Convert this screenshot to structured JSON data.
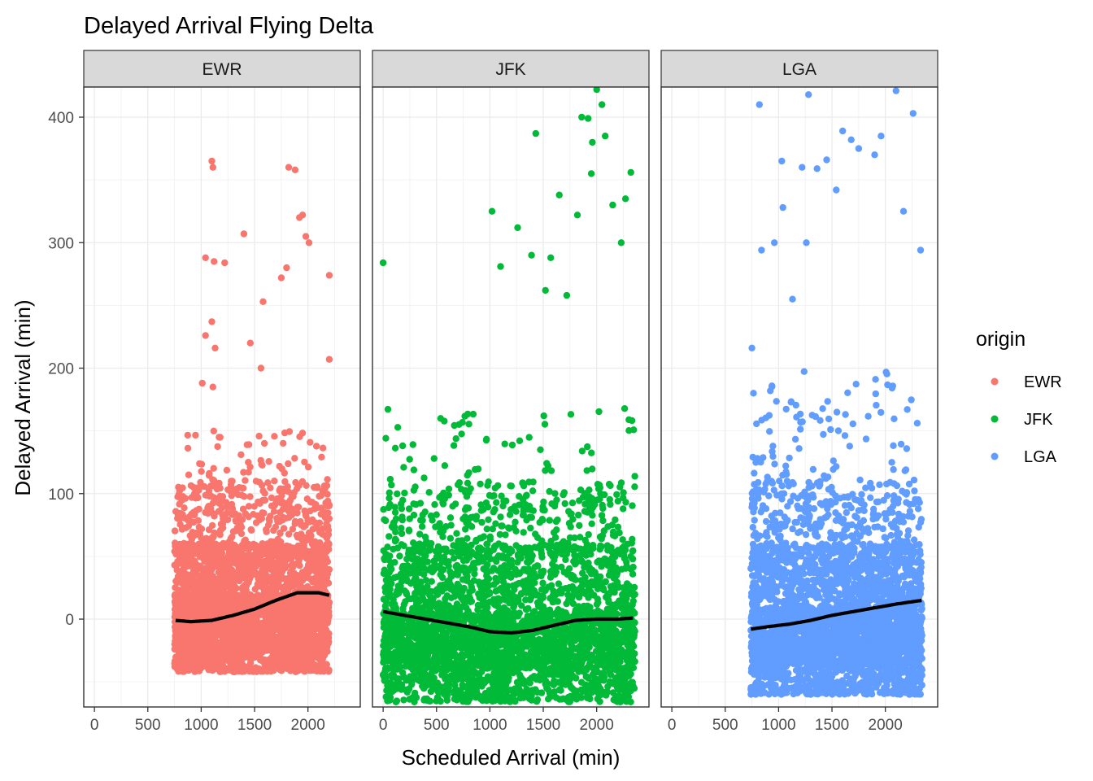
{
  "chart_data": {
    "type": "scatter",
    "title": "Delayed Arrival Flying Delta",
    "xlabel": "Scheduled Arrival (min)",
    "ylabel": "Delayed Arrival (min)",
    "xlim": [
      -100,
      2490
    ],
    "ylim": [
      -70,
      424
    ],
    "x_ticks": [
      0,
      500,
      1000,
      1500,
      2000
    ],
    "y_ticks": [
      0,
      100,
      200,
      300,
      400
    ],
    "grid": true,
    "legend": {
      "title": "origin",
      "placement": "right"
    },
    "facets": [
      {
        "name": "EWR",
        "color": "#F8766D",
        "x_range": [
          750,
          2200
        ],
        "band": {
          "lower": -42,
          "upper": 150
        },
        "smooth": {
          "x": [
            760,
            900,
            1100,
            1300,
            1500,
            1700,
            1900,
            2100,
            2200
          ],
          "y": [
            -1,
            -2,
            -1,
            3,
            8,
            15,
            21,
            21,
            19
          ]
        },
        "outliers": [
          [
            1100,
            365
          ],
          [
            1110,
            360
          ],
          [
            1400,
            307
          ],
          [
            1040,
            288
          ],
          [
            1120,
            285
          ],
          [
            1220,
            284
          ],
          [
            1820,
            360
          ],
          [
            1880,
            358
          ],
          [
            1920,
            320
          ],
          [
            1950,
            322
          ],
          [
            1980,
            305
          ],
          [
            2010,
            300
          ],
          [
            1750,
            272
          ],
          [
            1800,
            280
          ],
          [
            2200,
            274
          ],
          [
            1580,
            253
          ],
          [
            1100,
            237
          ],
          [
            1040,
            226
          ],
          [
            1130,
            216
          ],
          [
            1560,
            200
          ],
          [
            1010,
            188
          ],
          [
            1110,
            185
          ],
          [
            2200,
            207
          ],
          [
            1460,
            220
          ]
        ]
      },
      {
        "name": "JFK",
        "color": "#00BA38",
        "x_range": [
          0,
          2359
        ],
        "band": {
          "lower": -66,
          "upper": 170
        },
        "smooth": {
          "x": [
            0,
            200,
            400,
            600,
            800,
            1000,
            1200,
            1400,
            1600,
            1800,
            2000,
            2200,
            2359
          ],
          "y": [
            6,
            3,
            0,
            -3,
            -6,
            -10,
            -11,
            -9,
            -5,
            -1,
            0,
            0,
            1
          ]
        },
        "outliers": [
          [
            1860,
            400
          ],
          [
            1920,
            399
          ],
          [
            2000,
            422
          ],
          [
            2050,
            410
          ],
          [
            2080,
            385
          ],
          [
            1430,
            387
          ],
          [
            1020,
            325
          ],
          [
            1260,
            312
          ],
          [
            1390,
            290
          ],
          [
            1570,
            288
          ],
          [
            1650,
            338
          ],
          [
            1820,
            322
          ],
          [
            1950,
            355
          ],
          [
            2320,
            356
          ],
          [
            2150,
            330
          ],
          [
            2270,
            335
          ],
          [
            1960,
            380
          ],
          [
            0,
            284
          ],
          [
            1100,
            281
          ],
          [
            1520,
            262
          ],
          [
            2230,
            300
          ],
          [
            1720,
            258
          ]
        ]
      },
      {
        "name": "LGA",
        "color": "#619CFF",
        "x_range": [
          740,
          2345
        ],
        "band": {
          "lower": -60,
          "upper": 200
        },
        "smooth": {
          "x": [
            740,
            900,
            1100,
            1300,
            1500,
            1700,
            1900,
            2100,
            2345
          ],
          "y": [
            -8,
            -6,
            -4,
            -1,
            3,
            6,
            9,
            12,
            15
          ]
        },
        "outliers": [
          [
            820,
            410
          ],
          [
            1280,
            418
          ],
          [
            1600,
            389
          ],
          [
            1680,
            382
          ],
          [
            2100,
            421
          ],
          [
            2260,
            403
          ],
          [
            1960,
            385
          ],
          [
            1030,
            365
          ],
          [
            1220,
            360
          ],
          [
            1360,
            359
          ],
          [
            1450,
            366
          ],
          [
            1750,
            375
          ],
          [
            1900,
            370
          ],
          [
            840,
            294
          ],
          [
            1040,
            328
          ],
          [
            1260,
            300
          ],
          [
            1540,
            342
          ],
          [
            2170,
            325
          ],
          [
            2330,
            294
          ],
          [
            750,
            216
          ],
          [
            960,
            300
          ],
          [
            1130,
            255
          ]
        ]
      }
    ]
  }
}
